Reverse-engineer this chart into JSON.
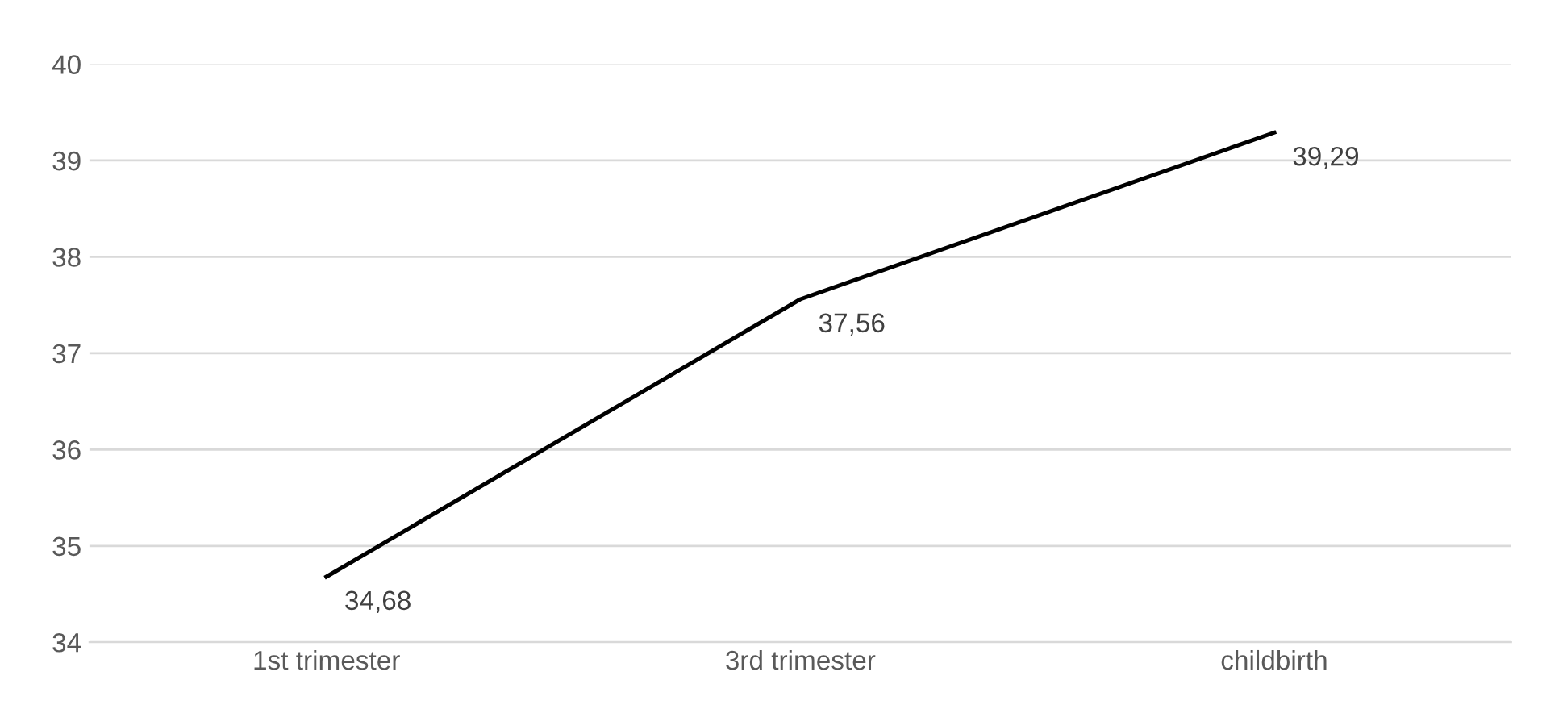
{
  "chart_data": {
    "type": "line",
    "categories": [
      "1st trimester",
      "3rd trimester",
      "childbirth"
    ],
    "series": [
      {
        "color": "#000000",
        "values": [
          34.68,
          37.56,
          39.29
        ],
        "value_labels": [
          "34,68",
          "37,56",
          "39,29"
        ]
      }
    ],
    "ylim": [
      34,
      40
    ],
    "yticks": [
      34,
      35,
      36,
      37,
      38,
      39,
      40
    ],
    "grid": "y",
    "marker": "none",
    "line_style": "solid",
    "legend": false
  }
}
